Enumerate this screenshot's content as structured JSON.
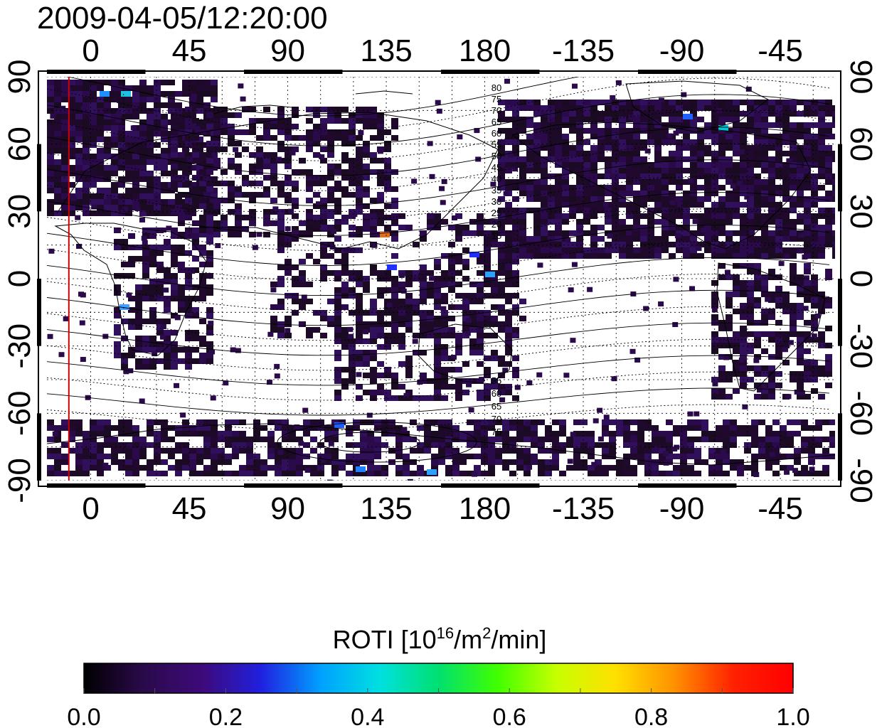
{
  "timestamp": "2009-04-05/12:20:00",
  "map": {
    "lon_tick_labels": [
      "0",
      "45",
      "90",
      "135",
      "180",
      "-135",
      "-90",
      "-45"
    ],
    "lat_tick_labels": [
      "90",
      "60",
      "30",
      "0",
      "-30",
      "-60",
      "-90"
    ],
    "contour_labels_north": [
      "80",
      "75",
      "70",
      "65",
      "60",
      "55",
      "50",
      "45",
      "40",
      "35",
      "30",
      "25",
      "20",
      "15"
    ],
    "contour_labels_south": [
      "55",
      "60",
      "65",
      "70",
      "75"
    ],
    "terminator_longitude": -10,
    "lon_range": [
      -20,
      340
    ],
    "lat_range": [
      -90,
      90
    ],
    "grid": true
  },
  "colorbar": {
    "title": "ROTI  [10",
    "title_sup1": "16",
    "title_mid": "/m",
    "title_sup2": "2",
    "title_end": "/min]",
    "tick_labels": [
      "0.0",
      "0.2",
      "0.4",
      "0.6",
      "0.8",
      "1.0"
    ],
    "range": [
      0.0,
      1.0
    ],
    "colors": [
      "#000000",
      "#2a0a4a",
      "#3d0a7a",
      "#2020e0",
      "#00a0ff",
      "#00e0e0",
      "#00e070",
      "#40ff00",
      "#c8ff00",
      "#ffe000",
      "#ff9000",
      "#ff2000",
      "#ff0000"
    ]
  },
  "colors": {
    "terminator": "#d00000",
    "data_cell": "#1a0a22"
  }
}
